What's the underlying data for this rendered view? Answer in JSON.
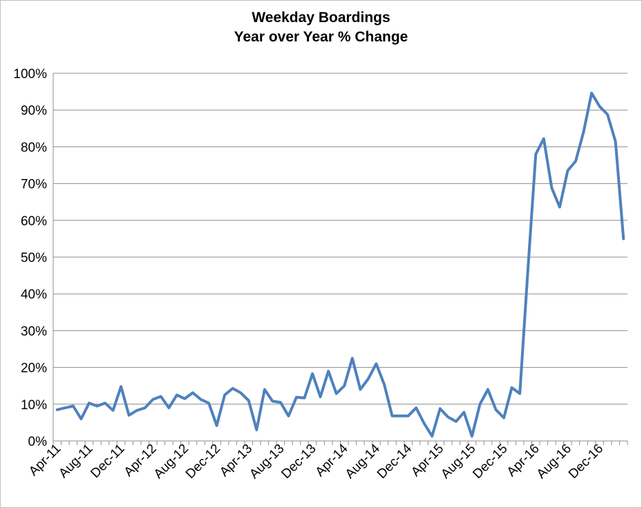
{
  "chart_data": {
    "type": "line",
    "title": "Weekday Boardings",
    "subtitle": "Year over Year % Change",
    "xlabel": "",
    "ylabel": "",
    "ylim": [
      0,
      100
    ],
    "y_ticks": [
      "0%",
      "10%",
      "20%",
      "30%",
      "40%",
      "50%",
      "60%",
      "70%",
      "80%",
      "90%",
      "100%"
    ],
    "x_tick_labels": [
      "Apr-11",
      "Aug-11",
      "Dec-11",
      "Apr-12",
      "Aug-12",
      "Dec-12",
      "Apr-13",
      "Aug-13",
      "Dec-13",
      "Apr-14",
      "Aug-14",
      "Dec-14",
      "Apr-15",
      "Aug-15",
      "Dec-15",
      "Apr-16",
      "Aug-16",
      "Dec-16"
    ],
    "grid": true,
    "legend": "none",
    "line_color": "#4f81bd",
    "x": [
      "Apr-11",
      "May-11",
      "Jun-11",
      "Jul-11",
      "Aug-11",
      "Sep-11",
      "Oct-11",
      "Nov-11",
      "Dec-11",
      "Jan-12",
      "Feb-12",
      "Mar-12",
      "Apr-12",
      "May-12",
      "Jun-12",
      "Jul-12",
      "Aug-12",
      "Sep-12",
      "Oct-12",
      "Nov-12",
      "Dec-12",
      "Jan-13",
      "Feb-13",
      "Mar-13",
      "Apr-13",
      "May-13",
      "Jun-13",
      "Jul-13",
      "Aug-13",
      "Sep-13",
      "Oct-13",
      "Nov-13",
      "Dec-13",
      "Jan-14",
      "Feb-14",
      "Mar-14",
      "Apr-14",
      "May-14",
      "Jun-14",
      "Jul-14",
      "Aug-14",
      "Sep-14",
      "Oct-14",
      "Nov-14",
      "Dec-14",
      "Jan-15",
      "Feb-15",
      "Mar-15",
      "Apr-15",
      "May-15",
      "Jun-15",
      "Jul-15",
      "Aug-15",
      "Sep-15",
      "Oct-15",
      "Nov-15",
      "Dec-15",
      "Jan-16",
      "Feb-16",
      "Mar-16",
      "Apr-16",
      "May-16",
      "Jun-16",
      "Jul-16",
      "Aug-16",
      "Sep-16",
      "Oct-16",
      "Nov-16",
      "Dec-16",
      "Jan-17",
      "Feb-17",
      "Mar-17"
    ],
    "series": [
      {
        "values": [
          8.5,
          9.0,
          9.5,
          6.0,
          10.3,
          9.5,
          10.3,
          8.3,
          14.8,
          7.0,
          8.3,
          9.0,
          11.3,
          12.1,
          9.0,
          12.5,
          11.5,
          13.1,
          11.3,
          10.3,
          4.2,
          12.5,
          14.3,
          13.1,
          11.0,
          3.0,
          14.0,
          10.8,
          10.5,
          6.8,
          11.9,
          11.7,
          18.3,
          12.0,
          19.0,
          12.9,
          15.0,
          22.5,
          14.0,
          16.9,
          21.0,
          15.4,
          6.8,
          6.8,
          6.8,
          9.0,
          4.8,
          1.3,
          8.8,
          6.5,
          5.3,
          7.8,
          1.3,
          10.0,
          14.0,
          8.5,
          6.3,
          14.5,
          12.9,
          46.0,
          78.0,
          82.2,
          68.8,
          63.6,
          73.5,
          76.1,
          84.1,
          94.6,
          91.0,
          88.8,
          81.4,
          55.0
        ]
      }
    ]
  }
}
